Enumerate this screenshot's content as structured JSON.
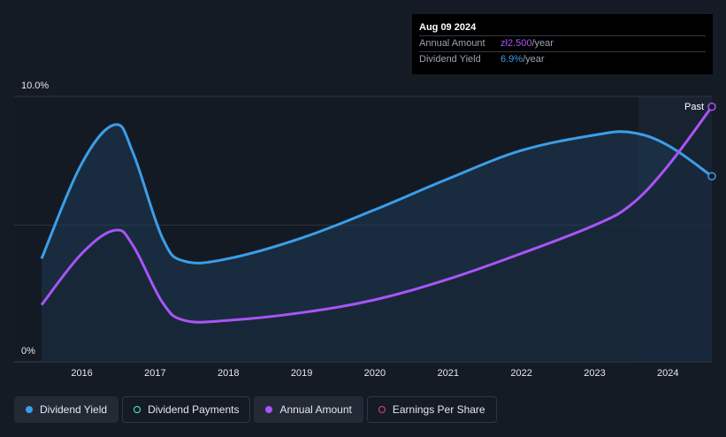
{
  "tooltip": {
    "date": "Aug 09 2024",
    "rows": [
      {
        "label": "Annual Amount",
        "value": "zł2.500",
        "unit": "/year"
      },
      {
        "label": "Dividend Yield",
        "value": "6.9%",
        "unit": "/year"
      }
    ]
  },
  "past_label": "Past",
  "legend": [
    {
      "label": "Dividend Yield",
      "color": "#3b9ee8",
      "filled": true
    },
    {
      "label": "Dividend Payments",
      "color": "#5eead4",
      "filled": false
    },
    {
      "label": "Annual Amount",
      "color": "#a855f7",
      "filled": true
    },
    {
      "label": "Earnings Per Share",
      "color": "#e0457b",
      "filled": false
    }
  ],
  "colors": {
    "background": "#151b24",
    "dividend_yield": "#3b9ee8",
    "annual_amount": "#a855f7",
    "past_shade": "#1b2a3d"
  },
  "chart_data": {
    "type": "line",
    "y_tick_labels": [
      "10.0%",
      "0%"
    ],
    "ylim": [
      0,
      10
    ],
    "xlim": [
      2015.4,
      2024.6
    ],
    "x_tick_labels": [
      "2016",
      "2017",
      "2018",
      "2019",
      "2020",
      "2021",
      "2022",
      "2023",
      "2024"
    ],
    "x_ticks": [
      2016,
      2017,
      2018,
      2019,
      2020,
      2021,
      2022,
      2023,
      2024
    ],
    "past_region_start": 2023.6,
    "grid": true,
    "series": [
      {
        "name": "Dividend Yield",
        "unit": "%",
        "points": [
          [
            2015.45,
            3.7
          ],
          [
            2016.0,
            7.4
          ],
          [
            2016.45,
            8.9
          ],
          [
            2016.7,
            7.8
          ],
          [
            2017.1,
            4.5
          ],
          [
            2017.4,
            3.6
          ],
          [
            2018.0,
            3.7
          ],
          [
            2019.0,
            4.5
          ],
          [
            2020.0,
            5.6
          ],
          [
            2021.0,
            6.8
          ],
          [
            2022.0,
            7.9
          ],
          [
            2023.0,
            8.5
          ],
          [
            2023.5,
            8.6
          ],
          [
            2024.0,
            8.1
          ],
          [
            2024.6,
            6.9
          ]
        ]
      },
      {
        "name": "Annual Amount",
        "points": [
          [
            2015.45,
            1.9
          ],
          [
            2016.0,
            3.9
          ],
          [
            2016.45,
            4.8
          ],
          [
            2016.7,
            4.2
          ],
          [
            2017.1,
            2.0
          ],
          [
            2017.4,
            1.3
          ],
          [
            2018.0,
            1.3
          ],
          [
            2019.0,
            1.6
          ],
          [
            2020.0,
            2.1
          ],
          [
            2021.0,
            2.9
          ],
          [
            2022.0,
            3.9
          ],
          [
            2023.0,
            5.0
          ],
          [
            2023.5,
            5.8
          ],
          [
            2024.0,
            7.3
          ],
          [
            2024.6,
            9.6
          ]
        ]
      }
    ]
  }
}
